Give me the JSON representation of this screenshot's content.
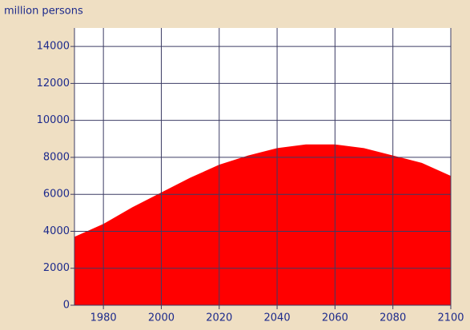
{
  "chart_data": {
    "type": "area",
    "ylabel": "million persons",
    "x": [
      1970,
      1980,
      1990,
      2000,
      2010,
      2020,
      2030,
      2040,
      2050,
      2060,
      2070,
      2080,
      2090,
      2100
    ],
    "values": [
      3700,
      4400,
      5300,
      6100,
      6900,
      7600,
      8100,
      8500,
      8700,
      8700,
      8500,
      8100,
      7700,
      7000
    ],
    "color": "#ff0000",
    "xlim": [
      1970,
      2100
    ],
    "xticks": [
      1980,
      2000,
      2020,
      2040,
      2060,
      2080,
      2100
    ],
    "ylim": [
      0,
      15000
    ],
    "yticks": [
      0,
      2000,
      4000,
      6000,
      8000,
      10000,
      12000,
      14000
    ],
    "grid": true
  }
}
